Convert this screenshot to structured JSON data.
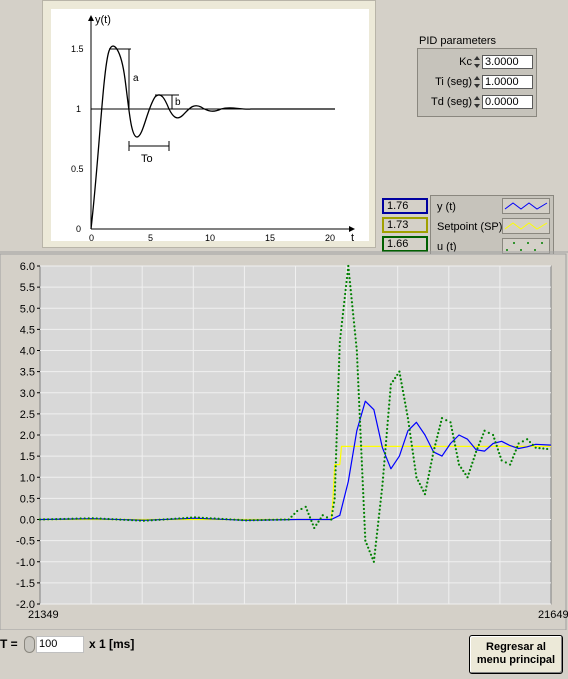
{
  "diagram": {
    "y_axis_label": "y(t)",
    "x_axis_label": "t",
    "y_ticks": [
      "1.5",
      "1",
      "0.5",
      "0"
    ],
    "x_ticks": [
      "0",
      "5",
      "10",
      "15",
      "20"
    ],
    "label_a": "a",
    "label_b": "b",
    "label_To": "To"
  },
  "pid": {
    "title": "PID parameters",
    "rows": [
      {
        "label": "Kc",
        "value": "3.0000"
      },
      {
        "label": "Ti (seg)",
        "value": "1.0000"
      },
      {
        "label": "Td (seg)",
        "value": "0.0000"
      }
    ]
  },
  "legend": {
    "items": [
      {
        "value": "1.76",
        "name": "y (t)",
        "color": "#0000ff"
      },
      {
        "value": "1.73",
        "name": "Setpoint (SP)",
        "color": "#ffff00"
      },
      {
        "value": "1.66",
        "name": "u (t)",
        "color": "#008000"
      }
    ]
  },
  "controls": {
    "t_label": "T =",
    "t_value": "100",
    "t_units": "x 1 [ms]",
    "back_button": "Regresar al menu principal"
  },
  "chart_data": {
    "type": "line",
    "xlim": [
      21349,
      21649
    ],
    "ylim": [
      -2.0,
      6.0
    ],
    "x_tick_labels": [
      "21349",
      "21649"
    ],
    "y_tick_labels": [
      "6.0",
      "5.5",
      "5.0",
      "4.5",
      "4.0",
      "3.5",
      "3.0",
      "2.5",
      "2.0",
      "1.5",
      "1.0",
      "0.5",
      "0.0",
      "-0.5",
      "-1.0",
      "-1.5",
      "-2.0"
    ],
    "grid": true,
    "series": [
      {
        "name": "Setpoint (SP)",
        "color": "#ffff00",
        "x": [
          21349,
          21520,
          21521,
          21522,
          21525,
          21526,
          21649
        ],
        "y": [
          0.0,
          0.0,
          0.5,
          1.3,
          1.3,
          1.73,
          1.73
        ]
      },
      {
        "name": "y (t)",
        "color": "#0000ff",
        "x": [
          21349,
          21380,
          21410,
          21440,
          21470,
          21500,
          21520,
          21525,
          21530,
          21535,
          21540,
          21545,
          21550,
          21555,
          21560,
          21565,
          21570,
          21575,
          21580,
          21585,
          21590,
          21595,
          21600,
          21605,
          21610,
          21615,
          21620,
          21625,
          21630,
          21635,
          21640,
          21649
        ],
        "y": [
          0.0,
          0.02,
          -0.02,
          0.03,
          -0.02,
          0.0,
          0.0,
          0.1,
          0.9,
          2.1,
          2.8,
          2.6,
          1.7,
          1.2,
          1.5,
          2.1,
          2.3,
          2.0,
          1.6,
          1.5,
          1.8,
          2.0,
          1.9,
          1.65,
          1.62,
          1.8,
          1.85,
          1.75,
          1.68,
          1.72,
          1.78,
          1.76
        ]
      },
      {
        "name": "u (t)",
        "color": "#008000",
        "x": [
          21349,
          21380,
          21410,
          21440,
          21470,
          21495,
          21500,
          21505,
          21510,
          21515,
          21520,
          21522,
          21525,
          21530,
          21535,
          21540,
          21545,
          21550,
          21555,
          21560,
          21565,
          21570,
          21575,
          21580,
          21585,
          21590,
          21595,
          21600,
          21605,
          21610,
          21615,
          21620,
          21625,
          21630,
          21635,
          21640,
          21649
        ],
        "y": [
          0.0,
          0.03,
          -0.03,
          0.05,
          -0.02,
          0.0,
          0.2,
          0.3,
          -0.2,
          0.1,
          0.0,
          0.5,
          4.2,
          6.0,
          4.0,
          -0.5,
          -1.0,
          0.8,
          3.2,
          3.5,
          2.4,
          1.0,
          0.6,
          1.6,
          2.4,
          2.3,
          1.3,
          1.0,
          1.6,
          2.1,
          2.0,
          1.4,
          1.3,
          1.8,
          1.9,
          1.7,
          1.66
        ]
      }
    ]
  }
}
